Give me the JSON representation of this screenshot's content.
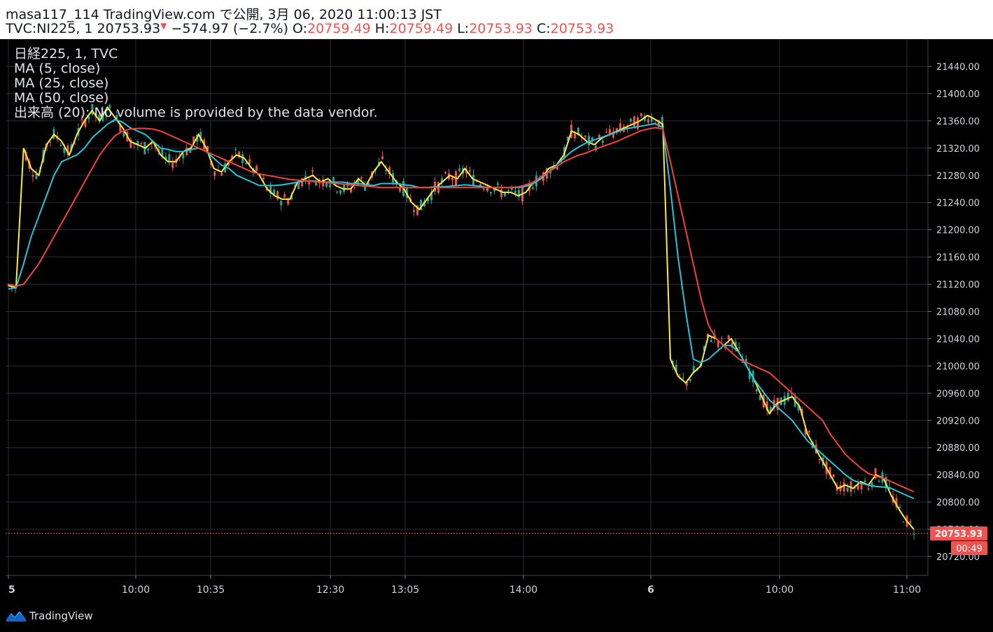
{
  "header": {
    "published": "masa117_114 TradingView.com で公開, 3月 06, 2020 11:00:13 JST",
    "symbol": "TVC:NI225, 1",
    "last": "20753.93",
    "change": "−574.97 (−2.7%)",
    "o_label": "O:",
    "o_value": "20759.49",
    "h_label": "H:",
    "h_value": "20759.49",
    "l_label": "L:",
    "l_value": "20753.93",
    "c_label": "C:",
    "c_value": "20753.93",
    "down_icon": "down-triangle-icon"
  },
  "legend": [
    "日経225, 1, TVC",
    "MA (5, close)",
    "MA (25, close)",
    "MA (50, close)",
    "出来高 (20): No volume is provided by the data vendor."
  ],
  "footer": {
    "brand": "TradingView",
    "logo_icon": "tradingview-logo-icon"
  },
  "chart_data": {
    "type": "line",
    "yticks": [
      20720,
      20760,
      20800,
      20840,
      20880,
      20920,
      20960,
      21000,
      21040,
      21080,
      21120,
      21160,
      21200,
      21240,
      21280,
      21320,
      21360,
      21400,
      21440
    ],
    "ytick_labels": [
      "20720.00",
      "20760.00",
      "20800.00",
      "20840.00",
      "20880.00",
      "20920.00",
      "20960.00",
      "21000.00",
      "21040.00",
      "21080.00",
      "21120.00",
      "21160.00",
      "21200.00",
      "21240.00",
      "21280.00",
      "21320.00",
      "21360.00",
      "21400.00",
      "21440.00"
    ],
    "xtick_labels": [
      "5",
      "10:00",
      "10:35",
      "12:30",
      "13:05",
      "14:00",
      "6",
      "10:00",
      "11:00"
    ],
    "last_price_label": "20753.93",
    "countdown_label": "00:49",
    "colors": {
      "up": "#26a69a",
      "down": "#ef5350",
      "ma5": "#ffeb3b",
      "ma25": "#26c6da",
      "ma50": "#f44336",
      "grid": "#2a2e39",
      "axis_text": "#d1d4dc",
      "price_tag": "#ef5350"
    },
    "series": [
      {
        "name": "MA (5, close)",
        "color": "#ffeb3b",
        "values": [
          21118,
          21115,
          21320,
          21290,
          21280,
          21325,
          21340,
          21330,
          21310,
          21340,
          21360,
          21375,
          21360,
          21380,
          21365,
          21350,
          21330,
          21325,
          21320,
          21330,
          21310,
          21300,
          21300,
          21315,
          21320,
          21340,
          21320,
          21290,
          21285,
          21300,
          21310,
          21305,
          21290,
          21280,
          21260,
          21250,
          21245,
          21245,
          21270,
          21275,
          21280,
          21270,
          21275,
          21265,
          21260,
          21260,
          21275,
          21265,
          21285,
          21300,
          21285,
          21270,
          21260,
          21240,
          21230,
          21245,
          21260,
          21270,
          21280,
          21275,
          21290,
          21275,
          21270,
          21265,
          21260,
          21255,
          21255,
          21250,
          21255,
          21270,
          21275,
          21290,
          21295,
          21310,
          21345,
          21340,
          21330,
          21325,
          21335,
          21340,
          21345,
          21350,
          21355,
          21360,
          21368,
          21362,
          21355,
          21010,
          20985,
          20975,
          20990,
          21000,
          21045,
          21040,
          21030,
          21040,
          21020,
          21000,
          20980,
          20955,
          20930,
          20945,
          20950,
          20955,
          20940,
          20900,
          20880,
          20860,
          20840,
          20820,
          20825,
          20820,
          20830,
          20825,
          20840,
          20835,
          20810,
          20790,
          20773,
          20760
        ]
      },
      {
        "name": "MA (25, close)",
        "color": "#26c6da",
        "values": [
          21113,
          21115,
          21150,
          21190,
          21220,
          21250,
          21280,
          21300,
          21305,
          21310,
          21320,
          21335,
          21345,
          21355,
          21362,
          21358,
          21350,
          21345,
          21340,
          21330,
          21320,
          21318,
          21315,
          21315,
          21318,
          21320,
          21315,
          21305,
          21295,
          21290,
          21280,
          21275,
          21270,
          21265,
          21265,
          21265,
          21266,
          21268,
          21270,
          21272,
          21272,
          21270,
          21270,
          21270,
          21270,
          21268,
          21268,
          21266,
          21265,
          21268,
          21268,
          21268,
          21266,
          21265,
          21262,
          21262,
          21263,
          21263,
          21264,
          21265,
          21266,
          21265,
          21264,
          21262,
          21262,
          21262,
          21262,
          21262,
          21264,
          21268,
          21275,
          21285,
          21295,
          21305,
          21315,
          21322,
          21328,
          21332,
          21336,
          21340,
          21344,
          21348,
          21350,
          21352,
          21354,
          21356,
          21350,
          21260,
          21160,
          21080,
          21010,
          21005,
          21010,
          21020,
          21030,
          21030,
          21020,
          21000,
          20980,
          20965,
          20950,
          20940,
          20930,
          20920,
          20905,
          20890,
          20880,
          20870,
          20860,
          20850,
          20840,
          20832,
          20828,
          20825,
          20823,
          20822,
          20820,
          20815,
          20810,
          20805
        ]
      },
      {
        "name": "MA (50, close)",
        "color": "#f44336",
        "values": [
          21120,
          21117,
          21120,
          21135,
          21150,
          21170,
          21190,
          21210,
          21230,
          21250,
          21270,
          21290,
          21310,
          21325,
          21338,
          21345,
          21348,
          21349,
          21349,
          21348,
          21345,
          21340,
          21335,
          21330,
          21325,
          21320,
          21315,
          21310,
          21305,
          21300,
          21295,
          21290,
          21285,
          21282,
          21280,
          21278,
          21276,
          21274,
          21273,
          21272,
          21271,
          21270,
          21269,
          21268,
          21267,
          21266,
          21265,
          21264,
          21263,
          21262,
          21262,
          21262,
          21262,
          21262,
          21262,
          21262,
          21262,
          21262,
          21262,
          21262,
          21262,
          21262,
          21262,
          21262,
          21262,
          21262,
          21262,
          21263,
          21266,
          21270,
          21278,
          21285,
          21292,
          21300,
          21305,
          21310,
          21313,
          21318,
          21322,
          21326,
          21330,
          21335,
          21340,
          21345,
          21348,
          21350,
          21348,
          21300,
          21250,
          21200,
          21150,
          21100,
          21060,
          21040,
          21030,
          21020,
          21010,
          21005,
          21000,
          20995,
          20990,
          20980,
          20970,
          20960,
          20950,
          20940,
          20930,
          20920,
          20900,
          20885,
          20870,
          20860,
          20850,
          20842,
          20838,
          20835,
          20830,
          20825,
          20820,
          20815
        ]
      }
    ]
  }
}
